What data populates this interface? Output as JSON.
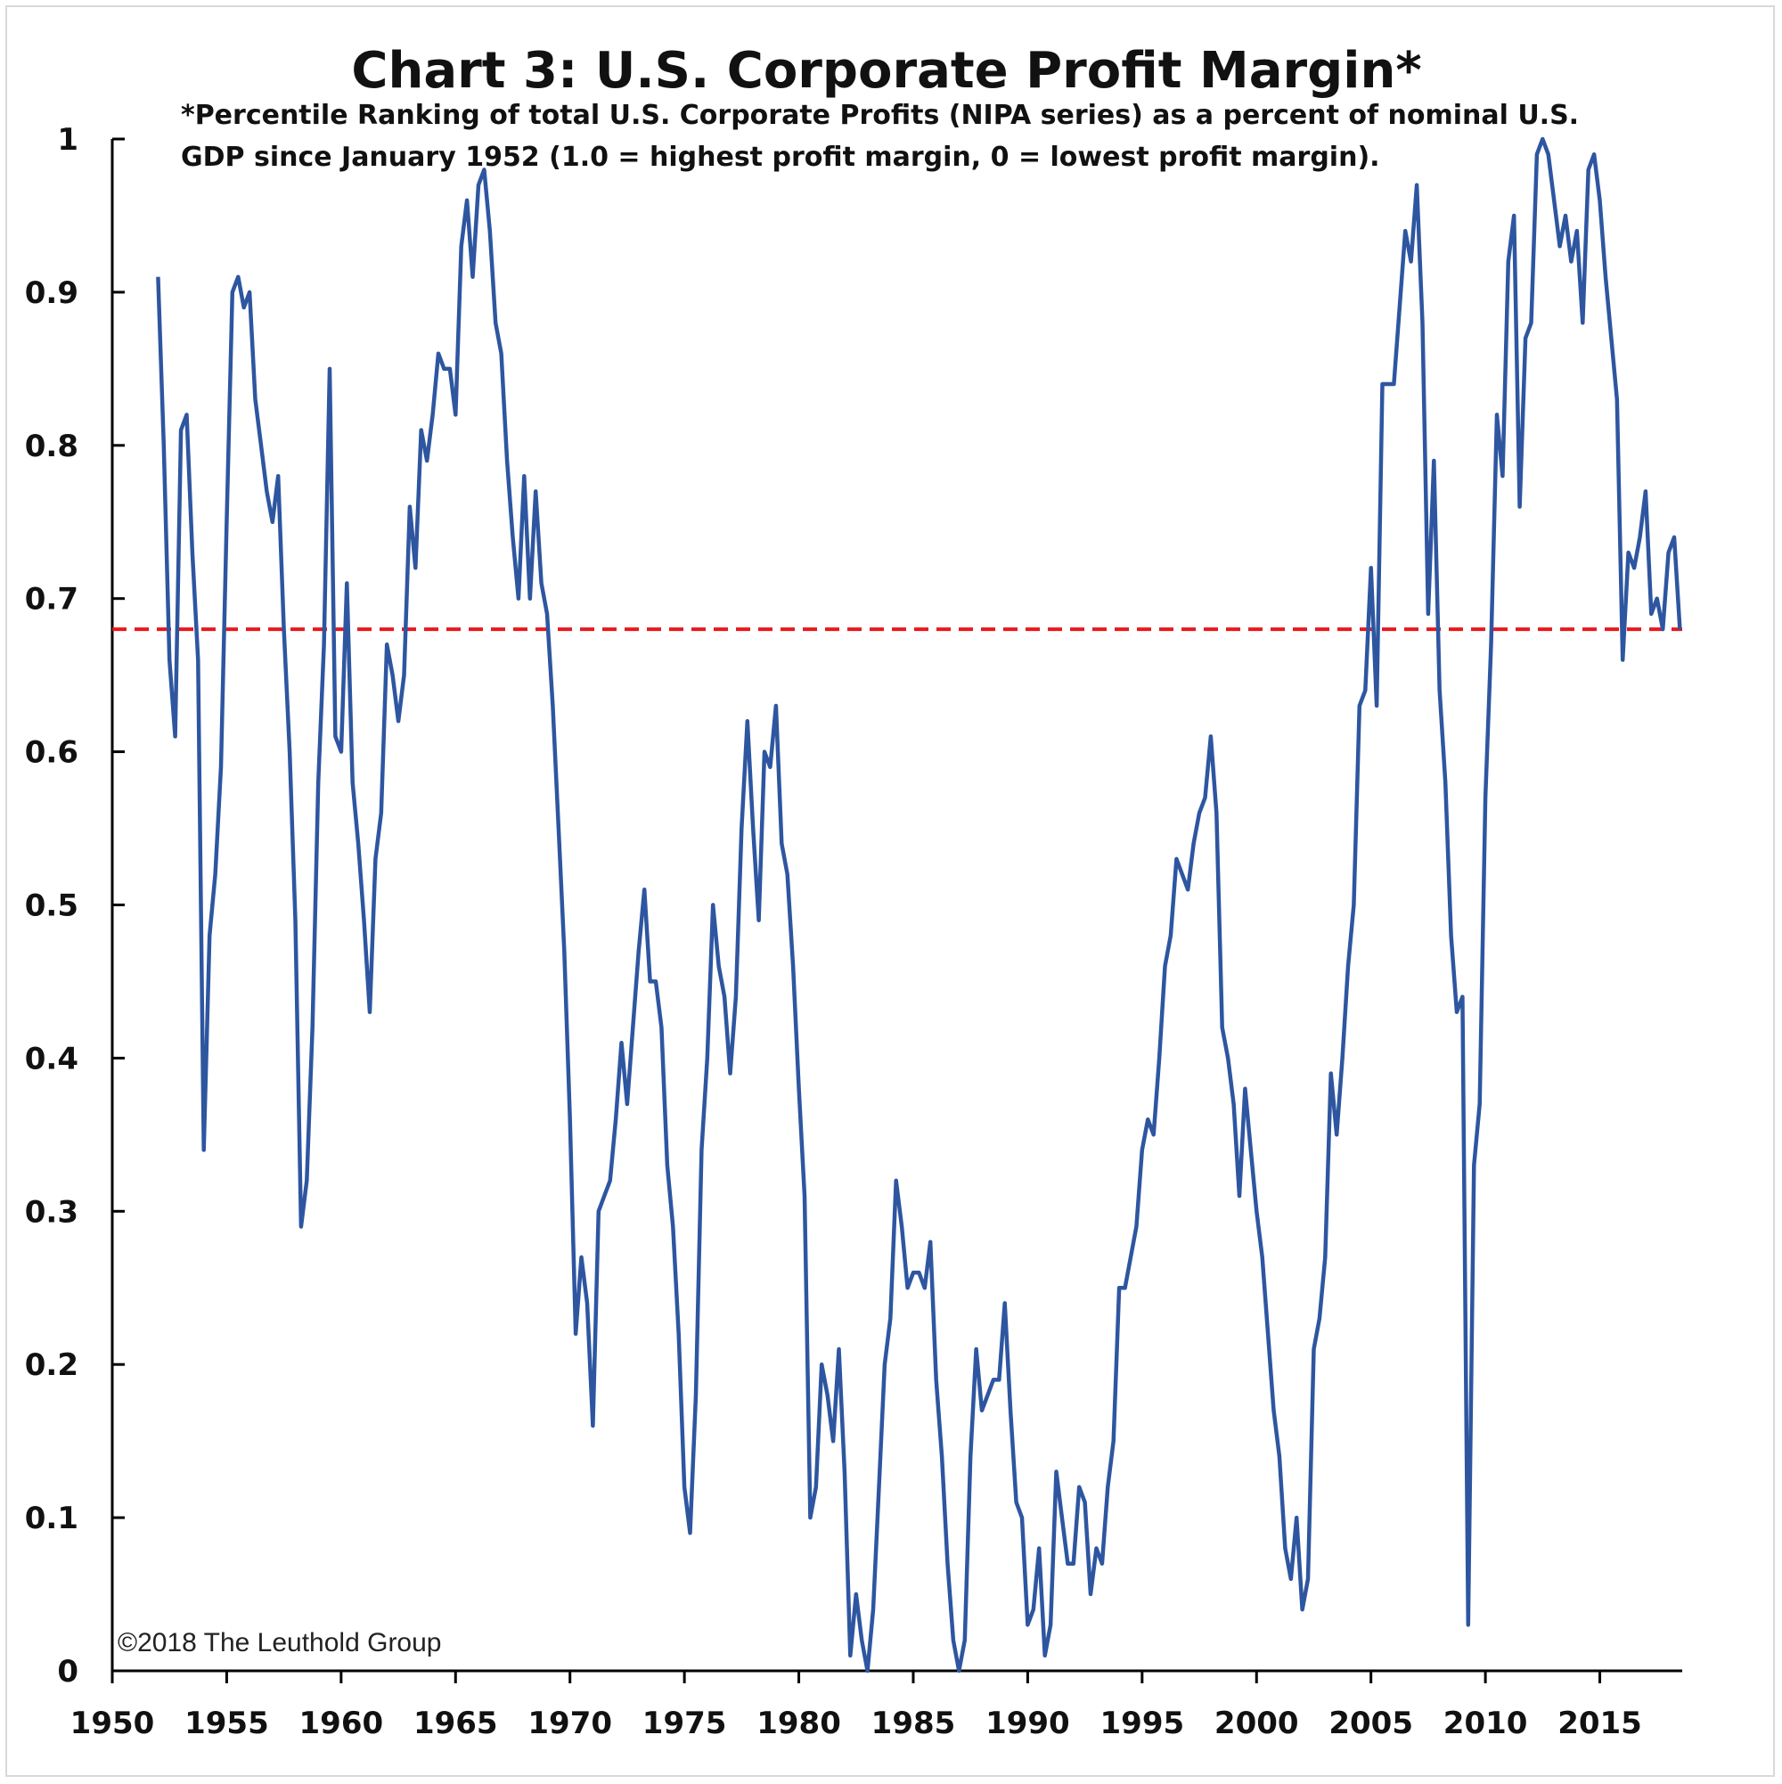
{
  "chart_data": {
    "type": "line",
    "title": "Chart 3: U.S. Corporate Profit Margin*",
    "subtitle_lines": [
      "*Percentile Ranking of total U.S. Corporate Profits (NIPA series) as a percent of nominal U.S.",
      "GDP since January 1952 (1.0 = highest profit margin, 0 = lowest profit margin)."
    ],
    "copyright": "©2018 The Leuthold Group",
    "xlim": [
      1950,
      2018.6
    ],
    "ylim": [
      0,
      1
    ],
    "x_ticks": [
      1950,
      1955,
      1960,
      1965,
      1970,
      1975,
      1980,
      1985,
      1990,
      1995,
      2000,
      2005,
      2010,
      2015
    ],
    "y_ticks": [
      0,
      0.1,
      0.2,
      0.3,
      0.4,
      0.5,
      0.6,
      0.7,
      0.8,
      0.9,
      1
    ],
    "y_tick_labels": [
      "0",
      "0.1",
      "0.2",
      "0.3",
      "0.4",
      "0.5",
      "0.6",
      "0.7",
      "0.8",
      "0.9",
      "1"
    ],
    "grid": false,
    "reference_line": {
      "y": 0.68,
      "style": "dashed",
      "color": "#e8181d"
    },
    "series": [
      {
        "color": "#2e56a0",
        "points": [
          [
            1952.0,
            0.91
          ],
          [
            1952.25,
            0.8
          ],
          [
            1952.5,
            0.66
          ],
          [
            1952.75,
            0.61
          ],
          [
            1953.0,
            0.81
          ],
          [
            1953.25,
            0.82
          ],
          [
            1953.5,
            0.73
          ],
          [
            1953.75,
            0.66
          ],
          [
            1954.0,
            0.34
          ],
          [
            1954.25,
            0.48
          ],
          [
            1954.5,
            0.52
          ],
          [
            1954.75,
            0.59
          ],
          [
            1955.0,
            0.75
          ],
          [
            1955.25,
            0.9
          ],
          [
            1955.5,
            0.91
          ],
          [
            1955.75,
            0.89
          ],
          [
            1956.0,
            0.9
          ],
          [
            1956.25,
            0.83
          ],
          [
            1956.5,
            0.8
          ],
          [
            1956.75,
            0.77
          ],
          [
            1957.0,
            0.75
          ],
          [
            1957.25,
            0.78
          ],
          [
            1957.5,
            0.68
          ],
          [
            1957.75,
            0.6
          ],
          [
            1958.0,
            0.49
          ],
          [
            1958.25,
            0.29
          ],
          [
            1958.5,
            0.32
          ],
          [
            1958.75,
            0.42
          ],
          [
            1959.0,
            0.58
          ],
          [
            1959.25,
            0.67
          ],
          [
            1959.5,
            0.85
          ],
          [
            1959.75,
            0.61
          ],
          [
            1960.0,
            0.6
          ],
          [
            1960.25,
            0.71
          ],
          [
            1960.5,
            0.58
          ],
          [
            1960.75,
            0.54
          ],
          [
            1961.0,
            0.49
          ],
          [
            1961.25,
            0.43
          ],
          [
            1961.5,
            0.53
          ],
          [
            1961.75,
            0.56
          ],
          [
            1962.0,
            0.67
          ],
          [
            1962.25,
            0.65
          ],
          [
            1962.5,
            0.62
          ],
          [
            1962.75,
            0.65
          ],
          [
            1963.0,
            0.76
          ],
          [
            1963.25,
            0.72
          ],
          [
            1963.5,
            0.81
          ],
          [
            1963.75,
            0.79
          ],
          [
            1964.0,
            0.82
          ],
          [
            1964.25,
            0.86
          ],
          [
            1964.5,
            0.85
          ],
          [
            1964.75,
            0.85
          ],
          [
            1965.0,
            0.82
          ],
          [
            1965.25,
            0.93
          ],
          [
            1965.5,
            0.96
          ],
          [
            1965.75,
            0.91
          ],
          [
            1966.0,
            0.97
          ],
          [
            1966.25,
            0.98
          ],
          [
            1966.5,
            0.94
          ],
          [
            1966.75,
            0.88
          ],
          [
            1967.0,
            0.86
          ],
          [
            1967.25,
            0.79
          ],
          [
            1967.5,
            0.74
          ],
          [
            1967.75,
            0.7
          ],
          [
            1968.0,
            0.78
          ],
          [
            1968.25,
            0.7
          ],
          [
            1968.5,
            0.77
          ],
          [
            1968.75,
            0.71
          ],
          [
            1969.0,
            0.69
          ],
          [
            1969.25,
            0.63
          ],
          [
            1969.5,
            0.55
          ],
          [
            1969.75,
            0.47
          ],
          [
            1970.0,
            0.36
          ],
          [
            1970.25,
            0.22
          ],
          [
            1970.5,
            0.27
          ],
          [
            1970.75,
            0.24
          ],
          [
            1971.0,
            0.16
          ],
          [
            1971.25,
            0.3
          ],
          [
            1971.5,
            0.31
          ],
          [
            1971.75,
            0.32
          ],
          [
            1972.0,
            0.36
          ],
          [
            1972.25,
            0.41
          ],
          [
            1972.5,
            0.37
          ],
          [
            1972.75,
            0.42
          ],
          [
            1973.0,
            0.47
          ],
          [
            1973.25,
            0.51
          ],
          [
            1973.5,
            0.45
          ],
          [
            1973.75,
            0.45
          ],
          [
            1974.0,
            0.42
          ],
          [
            1974.25,
            0.33
          ],
          [
            1974.5,
            0.29
          ],
          [
            1974.75,
            0.22
          ],
          [
            1975.0,
            0.12
          ],
          [
            1975.25,
            0.09
          ],
          [
            1975.5,
            0.18
          ],
          [
            1975.75,
            0.34
          ],
          [
            1976.0,
            0.4
          ],
          [
            1976.25,
            0.5
          ],
          [
            1976.5,
            0.46
          ],
          [
            1976.75,
            0.44
          ],
          [
            1977.0,
            0.39
          ],
          [
            1977.25,
            0.44
          ],
          [
            1977.5,
            0.55
          ],
          [
            1977.75,
            0.62
          ],
          [
            1978.0,
            0.55
          ],
          [
            1978.25,
            0.49
          ],
          [
            1978.5,
            0.6
          ],
          [
            1978.75,
            0.59
          ],
          [
            1979.0,
            0.63
          ],
          [
            1979.25,
            0.54
          ],
          [
            1979.5,
            0.52
          ],
          [
            1979.75,
            0.46
          ],
          [
            1980.0,
            0.38
          ],
          [
            1980.25,
            0.31
          ],
          [
            1980.5,
            0.1
          ],
          [
            1980.75,
            0.12
          ],
          [
            1981.0,
            0.2
          ],
          [
            1981.25,
            0.18
          ],
          [
            1981.5,
            0.15
          ],
          [
            1981.75,
            0.21
          ],
          [
            1982.0,
            0.13
          ],
          [
            1982.25,
            0.01
          ],
          [
            1982.5,
            0.05
          ],
          [
            1982.75,
            0.02
          ],
          [
            1983.0,
            0.0
          ],
          [
            1983.25,
            0.04
          ],
          [
            1983.5,
            0.12
          ],
          [
            1983.75,
            0.2
          ],
          [
            1984.0,
            0.23
          ],
          [
            1984.25,
            0.32
          ],
          [
            1984.5,
            0.29
          ],
          [
            1984.75,
            0.25
          ],
          [
            1985.0,
            0.26
          ],
          [
            1985.25,
            0.26
          ],
          [
            1985.5,
            0.25
          ],
          [
            1985.75,
            0.28
          ],
          [
            1986.0,
            0.19
          ],
          [
            1986.25,
            0.14
          ],
          [
            1986.5,
            0.07
          ],
          [
            1986.75,
            0.02
          ],
          [
            1987.0,
            0.0
          ],
          [
            1987.25,
            0.02
          ],
          [
            1987.5,
            0.14
          ],
          [
            1987.75,
            0.21
          ],
          [
            1988.0,
            0.17
          ],
          [
            1988.25,
            0.18
          ],
          [
            1988.5,
            0.19
          ],
          [
            1988.75,
            0.19
          ],
          [
            1989.0,
            0.24
          ],
          [
            1989.25,
            0.17
          ],
          [
            1989.5,
            0.11
          ],
          [
            1989.75,
            0.1
          ],
          [
            1990.0,
            0.03
          ],
          [
            1990.25,
            0.04
          ],
          [
            1990.5,
            0.08
          ],
          [
            1990.75,
            0.01
          ],
          [
            1991.0,
            0.03
          ],
          [
            1991.25,
            0.13
          ],
          [
            1991.5,
            0.1
          ],
          [
            1991.75,
            0.07
          ],
          [
            1992.0,
            0.07
          ],
          [
            1992.25,
            0.12
          ],
          [
            1992.5,
            0.11
          ],
          [
            1992.75,
            0.05
          ],
          [
            1993.0,
            0.08
          ],
          [
            1993.25,
            0.07
          ],
          [
            1993.5,
            0.12
          ],
          [
            1993.75,
            0.15
          ],
          [
            1994.0,
            0.25
          ],
          [
            1994.25,
            0.25
          ],
          [
            1994.5,
            0.27
          ],
          [
            1994.75,
            0.29
          ],
          [
            1995.0,
            0.34
          ],
          [
            1995.25,
            0.36
          ],
          [
            1995.5,
            0.35
          ],
          [
            1995.75,
            0.4
          ],
          [
            1996.0,
            0.46
          ],
          [
            1996.25,
            0.48
          ],
          [
            1996.5,
            0.53
          ],
          [
            1996.75,
            0.52
          ],
          [
            1997.0,
            0.51
          ],
          [
            1997.25,
            0.54
          ],
          [
            1997.5,
            0.56
          ],
          [
            1997.75,
            0.57
          ],
          [
            1998.0,
            0.61
          ],
          [
            1998.25,
            0.56
          ],
          [
            1998.5,
            0.42
          ],
          [
            1998.75,
            0.4
          ],
          [
            1999.0,
            0.37
          ],
          [
            1999.25,
            0.31
          ],
          [
            1999.5,
            0.38
          ],
          [
            1999.75,
            0.34
          ],
          [
            2000.0,
            0.3
          ],
          [
            2000.25,
            0.27
          ],
          [
            2000.5,
            0.22
          ],
          [
            2000.75,
            0.17
          ],
          [
            2001.0,
            0.14
          ],
          [
            2001.25,
            0.08
          ],
          [
            2001.5,
            0.06
          ],
          [
            2001.75,
            0.1
          ],
          [
            2002.0,
            0.04
          ],
          [
            2002.25,
            0.06
          ],
          [
            2002.5,
            0.21
          ],
          [
            2002.75,
            0.23
          ],
          [
            2003.0,
            0.27
          ],
          [
            2003.25,
            0.39
          ],
          [
            2003.5,
            0.35
          ],
          [
            2003.75,
            0.4
          ],
          [
            2004.0,
            0.46
          ],
          [
            2004.25,
            0.5
          ],
          [
            2004.5,
            0.63
          ],
          [
            2004.75,
            0.64
          ],
          [
            2005.0,
            0.72
          ],
          [
            2005.25,
            0.63
          ],
          [
            2005.5,
            0.84
          ],
          [
            2005.75,
            0.84
          ],
          [
            2006.0,
            0.84
          ],
          [
            2006.25,
            0.89
          ],
          [
            2006.5,
            0.94
          ],
          [
            2006.75,
            0.92
          ],
          [
            2007.0,
            0.97
          ],
          [
            2007.25,
            0.88
          ],
          [
            2007.5,
            0.69
          ],
          [
            2007.75,
            0.79
          ],
          [
            2008.0,
            0.64
          ],
          [
            2008.25,
            0.58
          ],
          [
            2008.5,
            0.48
          ],
          [
            2008.75,
            0.43
          ],
          [
            2009.0,
            0.44
          ],
          [
            2009.25,
            0.03
          ],
          [
            2009.5,
            0.33
          ],
          [
            2009.75,
            0.37
          ],
          [
            2010.0,
            0.57
          ],
          [
            2010.25,
            0.67
          ],
          [
            2010.5,
            0.82
          ],
          [
            2010.75,
            0.78
          ],
          [
            2011.0,
            0.92
          ],
          [
            2011.25,
            0.95
          ],
          [
            2011.5,
            0.76
          ],
          [
            2011.75,
            0.87
          ],
          [
            2012.0,
            0.88
          ],
          [
            2012.25,
            0.99
          ],
          [
            2012.5,
            1.0
          ],
          [
            2012.75,
            0.99
          ],
          [
            2013.0,
            0.96
          ],
          [
            2013.25,
            0.93
          ],
          [
            2013.5,
            0.95
          ],
          [
            2013.75,
            0.92
          ],
          [
            2014.0,
            0.94
          ],
          [
            2014.25,
            0.88
          ],
          [
            2014.5,
            0.98
          ],
          [
            2014.75,
            0.99
          ],
          [
            2015.0,
            0.96
          ],
          [
            2015.25,
            0.91
          ],
          [
            2015.5,
            0.87
          ],
          [
            2015.75,
            0.83
          ],
          [
            2016.0,
            0.66
          ],
          [
            2016.25,
            0.73
          ],
          [
            2016.5,
            0.72
          ],
          [
            2016.75,
            0.74
          ],
          [
            2017.0,
            0.77
          ],
          [
            2017.25,
            0.69
          ],
          [
            2017.5,
            0.7
          ],
          [
            2017.75,
            0.68
          ],
          [
            2018.0,
            0.73
          ],
          [
            2018.25,
            0.74
          ],
          [
            2018.5,
            0.68
          ]
        ]
      }
    ]
  }
}
